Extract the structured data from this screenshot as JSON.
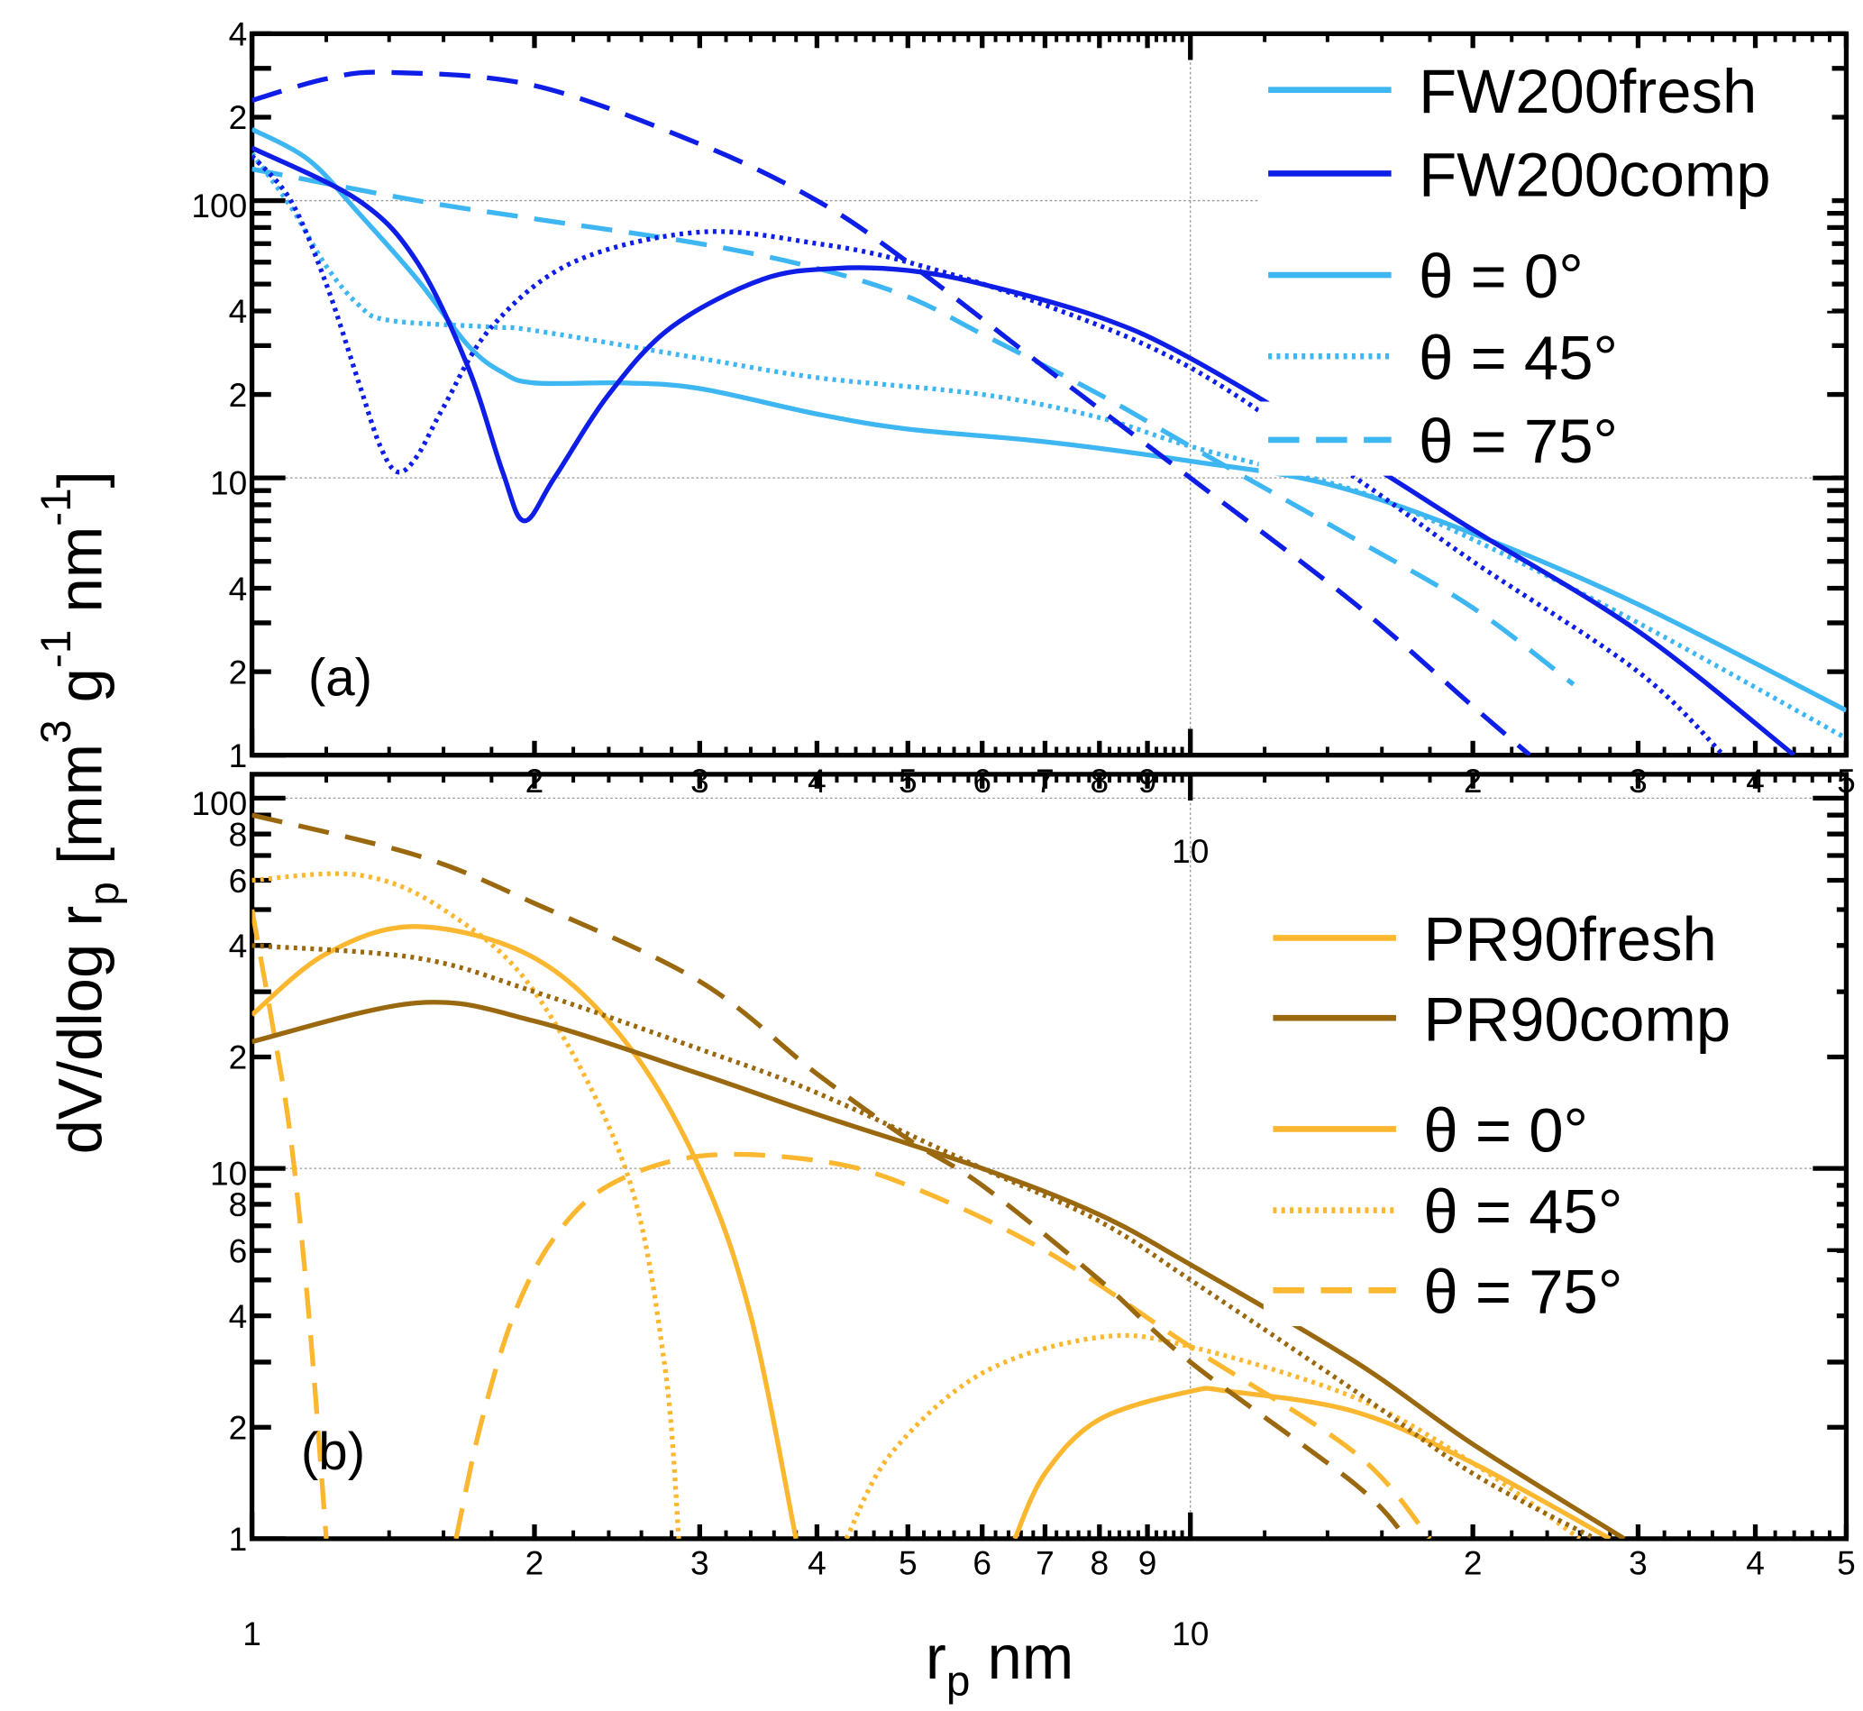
{
  "chart_data": [
    {
      "type": "line",
      "panel_label": "(a)",
      "xscale": "log",
      "yscale": "log",
      "xlim": [
        1,
        50
      ],
      "ylim": [
        1,
        400
      ],
      "grid": "decades, dotted",
      "legend_position": "top-right",
      "legend": {
        "samples": [
          "FW200fresh",
          "FW200comp"
        ],
        "styles": [
          "θ = 0°",
          "θ = 45°",
          "θ = 75°"
        ]
      },
      "y_tick_labels": [
        {
          "v": 400,
          "t": "4"
        },
        {
          "v": 200,
          "t": "2"
        },
        {
          "v": 100,
          "t": "100"
        },
        {
          "v": 40,
          "t": "4"
        },
        {
          "v": 20,
          "t": "2"
        },
        {
          "v": 10,
          "t": "10"
        },
        {
          "v": 4,
          "t": "4"
        },
        {
          "v": 2,
          "t": "2"
        },
        {
          "v": 1,
          "t": "1"
        }
      ],
      "x_tick_labels": [
        {
          "v": 2,
          "t": "2"
        },
        {
          "v": 3,
          "t": "3"
        },
        {
          "v": 4,
          "t": "4"
        },
        {
          "v": 5,
          "t": "5"
        },
        {
          "v": 6,
          "t": "6"
        },
        {
          "v": 7,
          "t": "7"
        },
        {
          "v": 8,
          "t": "8"
        },
        {
          "v": 9,
          "t": "9"
        },
        {
          "v": 10,
          "t": "10"
        },
        {
          "v": 20,
          "t": "2"
        },
        {
          "v": 30,
          "t": "3"
        },
        {
          "v": 40,
          "t": "4"
        },
        {
          "v": 50,
          "t": "5"
        }
      ],
      "series": [
        {
          "name": "FW200fresh θ=0°",
          "color": "#3db6f2",
          "style": "solid",
          "segments": [
            [
              [
                1,
                181
              ],
              [
                1.15,
                140
              ],
              [
                1.3,
                90
              ],
              [
                1.5,
                52
              ],
              [
                1.7,
                30
              ],
              [
                1.85,
                24
              ],
              [
                2,
                22
              ],
              [
                2.5,
                22
              ],
              [
                3,
                21
              ],
              [
                4,
                17
              ],
              [
                5,
                15
              ],
              [
                7,
                13.5
              ],
              [
                10,
                11.5
              ],
              [
                14,
                9.5
              ],
              [
                20,
                6.3
              ],
              [
                30,
                3.5
              ],
              [
                50,
                1.45
              ]
            ]
          ]
        },
        {
          "name": "FW200fresh θ=45°",
          "color": "#3db6f2",
          "style": "dotted",
          "segments": [
            [
              [
                1,
                148
              ],
              [
                1.1,
                95
              ],
              [
                1.2,
                58
              ],
              [
                1.3,
                42
              ],
              [
                1.4,
                37
              ],
              [
                1.8,
                35
              ],
              [
                2,
                34
              ],
              [
                3,
                27
              ],
              [
                4,
                23
              ],
              [
                6,
                20
              ],
              [
                8,
                16.5
              ],
              [
                10,
                13
              ],
              [
                15,
                9
              ],
              [
                20,
                6
              ],
              [
                30,
                3
              ],
              [
                50,
                1.15
              ]
            ]
          ]
        },
        {
          "name": "FW200fresh θ=75°",
          "color": "#3db6f2",
          "style": "dashed",
          "segments": [
            [
              [
                1,
                130
              ],
              [
                1.5,
                100
              ],
              [
                2,
                86
              ],
              [
                3,
                70
              ],
              [
                4,
                57
              ],
              [
                5,
                45
              ],
              [
                6,
                33
              ],
              [
                8,
                20
              ],
              [
                10,
                13
              ],
              [
                15,
                6
              ],
              [
                20,
                3.4
              ],
              [
                25.6,
                1.8
              ]
            ]
          ]
        },
        {
          "name": "FW200comp θ=0°",
          "color": "#0f1ee6",
          "style": "solid",
          "segments": [
            [
              [
                1,
                155
              ],
              [
                1.3,
                100
              ],
              [
                1.5,
                60
              ],
              [
                1.7,
                25
              ],
              [
                1.85,
                10.5
              ],
              [
                1.95,
                7
              ],
              [
                2.1,
                10
              ],
              [
                2.4,
                20
              ],
              [
                2.8,
                35
              ],
              [
                3.5,
                52
              ],
              [
                4.2,
                57
              ],
              [
                5,
                56
              ],
              [
                6,
                50
              ],
              [
                8,
                38
              ],
              [
                10,
                27
              ],
              [
                15,
                12
              ],
              [
                20,
                6.5
              ],
              [
                30,
                2.8
              ],
              [
                44,
                1
              ]
            ]
          ]
        },
        {
          "name": "FW200comp θ=45°",
          "color": "#0f1ee6",
          "style": "dotted",
          "segments": [
            [
              [
                1,
                145
              ],
              [
                1.1,
                100
              ],
              [
                1.2,
                50
              ],
              [
                1.3,
                22
              ],
              [
                1.37,
                13
              ],
              [
                1.43,
                10.5
              ],
              [
                1.5,
                12
              ],
              [
                1.6,
                18
              ],
              [
                1.8,
                35
              ],
              [
                2.2,
                60
              ],
              [
                3,
                77
              ],
              [
                4,
                70
              ],
              [
                5,
                60
              ],
              [
                7,
                42
              ],
              [
                10,
                25
              ],
              [
                15,
                10
              ],
              [
                20,
                5
              ],
              [
                30,
                2
              ],
              [
                37,
                1
              ]
            ]
          ]
        },
        {
          "name": "FW200comp θ=75°",
          "color": "#0f1ee6",
          "style": "dashed",
          "segments": [
            [
              [
                1,
                230
              ],
              [
                1.2,
                275
              ],
              [
                1.4,
                290
              ],
              [
                2,
                260
              ],
              [
                3,
                160
              ],
              [
                4,
                100
              ],
              [
                5,
                60
              ],
              [
                7,
                25
              ],
              [
                10,
                10
              ],
              [
                15,
                3.5
              ],
              [
                20,
                1.5
              ],
              [
                23,
                1
              ]
            ]
          ]
        }
      ]
    },
    {
      "type": "line",
      "panel_label": "(b)",
      "xscale": "log",
      "yscale": "log",
      "xlim": [
        1,
        50
      ],
      "ylim": [
        1,
        116
      ],
      "grid": "decades, dotted",
      "legend_position": "top-right",
      "legend": {
        "samples": [
          "PR90fresh",
          "PR90comp"
        ],
        "styles": [
          "θ = 0°",
          "θ = 45°",
          "θ = 75°"
        ]
      },
      "y_tick_labels": [
        {
          "v": 100,
          "t": "100"
        },
        {
          "v": 80,
          "t": "8"
        },
        {
          "v": 60,
          "t": "6"
        },
        {
          "v": 40,
          "t": "4"
        },
        {
          "v": 20,
          "t": "2"
        },
        {
          "v": 10,
          "t": "10"
        },
        {
          "v": 8,
          "t": "8"
        },
        {
          "v": 6,
          "t": "6"
        },
        {
          "v": 4,
          "t": "4"
        },
        {
          "v": 2,
          "t": "2"
        },
        {
          "v": 1,
          "t": "1"
        }
      ],
      "x_tick_labels": [
        {
          "v": 1,
          "t": "1"
        },
        {
          "v": 2,
          "t": "2"
        },
        {
          "v": 3,
          "t": "3"
        },
        {
          "v": 4,
          "t": "4"
        },
        {
          "v": 5,
          "t": "5"
        },
        {
          "v": 6,
          "t": "6"
        },
        {
          "v": 7,
          "t": "7"
        },
        {
          "v": 8,
          "t": "8"
        },
        {
          "v": 9,
          "t": "9"
        },
        {
          "v": 10,
          "t": "10"
        },
        {
          "v": 20,
          "t": "2"
        },
        {
          "v": 30,
          "t": "3"
        },
        {
          "v": 40,
          "t": "4"
        },
        {
          "v": 50,
          "t": "5"
        }
      ],
      "series": [
        {
          "name": "PR90fresh θ=0°",
          "color": "#fbb730",
          "style": "solid",
          "segments": [
            [
              [
                1,
                26
              ],
              [
                1.2,
                38
              ],
              [
                1.5,
                45
              ],
              [
                2,
                37
              ],
              [
                2.5,
                22
              ],
              [
                3,
                10
              ],
              [
                3.4,
                4
              ],
              [
                3.8,
                1
              ]
            ],
            [
              [
                6.5,
                1
              ],
              [
                7,
                1.5
              ],
              [
                8,
                2.1
              ],
              [
                10,
                2.5
              ],
              [
                11,
                2.5
              ],
              [
                15,
                2.2
              ],
              [
                20,
                1.6
              ],
              [
                28,
                1
              ]
            ]
          ]
        },
        {
          "name": "PR90fresh θ=45°",
          "color": "#fbb730",
          "style": "dotted",
          "segments": [
            [
              [
                1,
                60
              ],
              [
                1.3,
                62
              ],
              [
                1.6,
                50
              ],
              [
                2,
                30
              ],
              [
                2.5,
                10
              ],
              [
                2.75,
                3
              ],
              [
                2.85,
                1
              ]
            ],
            [
              [
                4.3,
                1
              ],
              [
                4.8,
                1.7
              ],
              [
                6,
                2.8
              ],
              [
                8,
                3.5
              ],
              [
                10,
                3.3
              ],
              [
                15,
                2.4
              ],
              [
                20,
                1.6
              ],
              [
                26,
                1
              ]
            ]
          ]
        },
        {
          "name": "PR90fresh θ=75°",
          "color": "#fbb730",
          "style": "dashed",
          "segments": [
            [
              [
                1,
                50
              ],
              [
                1.05,
                25
              ],
              [
                1.1,
                12
              ],
              [
                1.15,
                4
              ],
              [
                1.2,
                1
              ]
            ],
            [
              [
                1.65,
                1
              ],
              [
                1.75,
                2
              ],
              [
                1.9,
                4
              ],
              [
                2.1,
                6.5
              ],
              [
                2.4,
                9
              ],
              [
                3,
                10.8
              ],
              [
                4,
                10.5
              ],
              [
                5,
                9
              ],
              [
                7,
                6
              ],
              [
                10,
                3.3
              ],
              [
                15,
                1.7
              ],
              [
                18,
                1
              ]
            ]
          ]
        },
        {
          "name": "PR90comp θ=0°",
          "color": "#9a680e",
          "style": "solid",
          "segments": [
            [
              [
                1,
                22
              ],
              [
                1.5,
                28
              ],
              [
                2,
                25
              ],
              [
                3,
                18
              ],
              [
                4,
                14
              ],
              [
                6,
                10
              ],
              [
                8,
                7.5
              ],
              [
                10,
                5.5
              ],
              [
                15,
                3
              ],
              [
                20,
                1.8
              ],
              [
                29,
                1
              ]
            ]
          ]
        },
        {
          "name": "PR90comp θ=45°",
          "color": "#9a680e",
          "style": "dotted",
          "segments": [
            [
              [
                1,
                40
              ],
              [
                1.5,
                37
              ],
              [
                2,
                30
              ],
              [
                3,
                21
              ],
              [
                4,
                16
              ],
              [
                6,
                10
              ],
              [
                8,
                7.2
              ],
              [
                10,
                5
              ],
              [
                15,
                2.5
              ],
              [
                20,
                1.5
              ],
              [
                27,
                1
              ]
            ]
          ]
        },
        {
          "name": "PR90comp θ=75°",
          "color": "#9a680e",
          "style": "dashed",
          "segments": [
            [
              [
                1,
                90
              ],
              [
                1.5,
                70
              ],
              [
                2,
                52
              ],
              [
                3,
                32
              ],
              [
                4,
                18
              ],
              [
                5,
                12
              ],
              [
                6,
                9
              ],
              [
                8,
                5
              ],
              [
                10,
                3
              ],
              [
                15,
                1.4
              ],
              [
                17,
                1
              ]
            ]
          ]
        }
      ]
    }
  ],
  "axes": {
    "ylabel": {
      "main": "dV/dlog r",
      "sub": "p",
      "unit_open": " [mm",
      "sup3": "3",
      "g": " g",
      "supm1a": "-1",
      "nm": " nm",
      "supm1b": "-1",
      "close": "]"
    },
    "xlabel": {
      "main": "r",
      "sub": "p",
      "unit": "  nm"
    }
  },
  "colors": {
    "fresh_blue": "#3db6f2",
    "comp_blue": "#0f1ee6",
    "fresh_orange": "#fbb730",
    "comp_brown": "#9a680e"
  }
}
